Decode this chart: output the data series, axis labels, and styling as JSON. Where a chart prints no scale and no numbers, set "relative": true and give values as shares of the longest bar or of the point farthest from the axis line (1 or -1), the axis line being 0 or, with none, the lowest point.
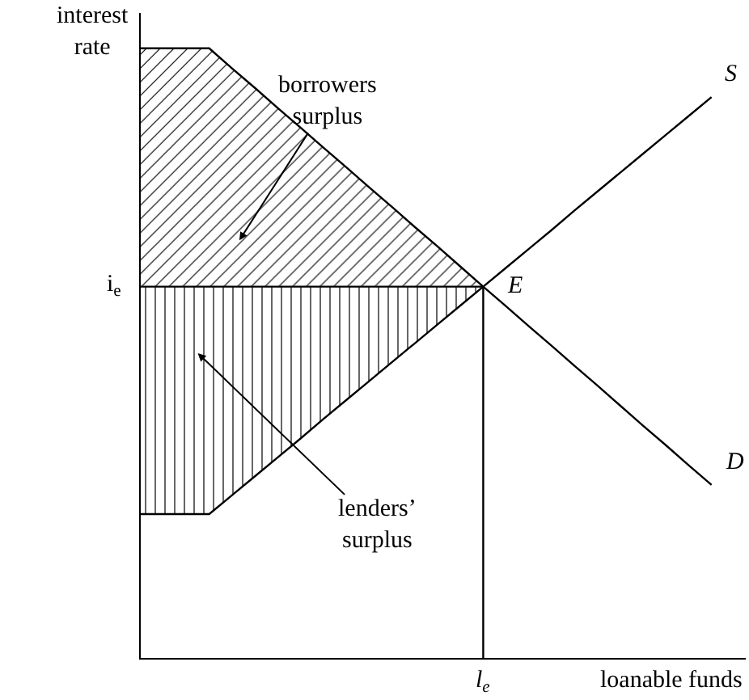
{
  "chart_data": {
    "type": "line",
    "relative": true,
    "xlabel": "loanable funds",
    "ylabel": "interest rate",
    "categories": [
      null,
      null,
      null,
      null,
      null,
      null,
      null,
      null,
      null,
      null,
      null,
      null,
      null,
      null,
      null,
      null,
      null,
      null,
      null,
      null,
      null,
      null,
      null,
      null,
      null,
      null
    ],
    "series": [
      {
        "name": "S",
        "color": "#000000",
        "values": [
          0.236,
          0.236,
          0.236,
          0.236,
          0.267,
          0.298,
          0.329,
          0.36,
          0.392,
          0.423,
          0.454,
          0.485,
          0.516,
          0.547,
          0.578,
          0.609,
          0.64,
          0.671,
          0.702,
          0.734,
          0.765,
          0.796,
          0.827,
          0.858,
          0.889,
          0.92
        ],
        "lower": [
          0.236,
          0.236,
          0.236,
          0.236,
          0.267,
          0.298,
          0.329,
          0.36,
          0.392,
          0.423,
          0.454,
          0.485,
          0.516,
          0.547,
          0.578,
          0.609,
          null,
          null,
          null,
          null,
          null,
          null,
          null,
          null,
          null,
          null
        ],
        "upper": [
          0.609,
          0.609,
          0.609,
          0.609,
          0.609,
          0.609,
          0.609,
          0.609,
          0.609,
          0.609,
          0.609,
          0.609,
          0.609,
          0.609,
          0.609,
          0.609,
          null,
          null,
          null,
          null,
          null,
          null,
          null,
          null,
          null,
          null
        ]
      },
      {
        "name": "D",
        "color": "#000000",
        "values": [
          1,
          1,
          1,
          1,
          0.967,
          0.935,
          0.902,
          0.87,
          0.837,
          0.805,
          0.772,
          0.74,
          0.707,
          0.675,
          0.642,
          0.609,
          0.577,
          0.544,
          0.512,
          0.479,
          0.447,
          0.414,
          0.381,
          0.349,
          0.316,
          0.284
        ],
        "lower": [
          0.609,
          0.609,
          0.609,
          0.609,
          0.609,
          0.609,
          0.609,
          0.609,
          0.609,
          0.609,
          0.609,
          0.609,
          0.609,
          0.609,
          0.609,
          0.609,
          null,
          null,
          null,
          null,
          null,
          null,
          null,
          null,
          null,
          null
        ],
        "upper": [
          1,
          1,
          1,
          1,
          0.967,
          0.935,
          0.902,
          0.87,
          0.837,
          0.805,
          0.772,
          0.74,
          0.707,
          0.675,
          0.642,
          0.609,
          null,
          null,
          null,
          null,
          null,
          null,
          null,
          null,
          null,
          null
        ]
      }
    ],
    "annotations": [
      "borrowers\nsurplus",
      "lenders’\nsurplus",
      "E",
      "i$_{e}$",
      "l$_{e}$"
    ]
  }
}
